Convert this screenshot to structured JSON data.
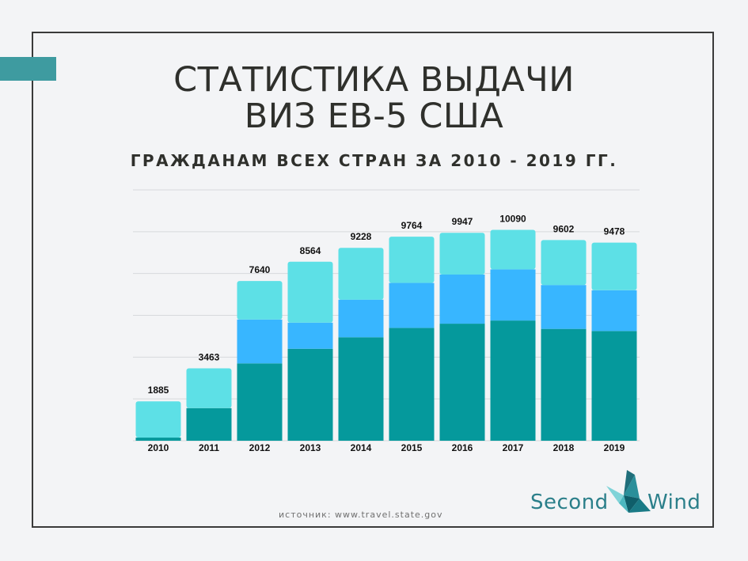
{
  "title_lines": [
    "СТАТИСТИКА ВЫДАЧИ",
    "ВИЗ EB-5 США"
  ],
  "subtitle": "ГРАЖДАНАМ ВСЕХ СТРАН ЗА 2010 - 2019 ГГ.",
  "source": "источник: www.travel.state.gov",
  "logo": {
    "part1": "Second",
    "part2": "Wind"
  },
  "colors": {
    "accent": "#3e9ba0",
    "frame": "#3a3a3a",
    "series_1": "#05999c",
    "series_2": "#38b6ff",
    "series_3": "#5de0e6",
    "logo": "#2b7f8a"
  },
  "chart_data": {
    "type": "bar",
    "stacked": true,
    "categories": [
      "2010",
      "2011",
      "2012",
      "2013",
      "2014",
      "2015",
      "2016",
      "2017",
      "2018",
      "2019"
    ],
    "totals": [
      1885,
      3463,
      7640,
      8564,
      9228,
      9764,
      9947,
      10090,
      9602,
      9478
    ],
    "series": [
      {
        "values": [
          150,
          1560,
          3700,
          4400,
          4950,
          5400,
          5600,
          5750,
          5350,
          5250
        ],
        "color": "#05999c"
      },
      {
        "values": [
          0,
          0,
          2100,
          1250,
          1800,
          2150,
          2350,
          2450,
          2100,
          1950
        ],
        "color": "#38b6ff"
      },
      {
        "values": [
          1735,
          1903,
          1840,
          2914,
          2478,
          2214,
          1997,
          1890,
          2152,
          2278
        ],
        "color": "#5de0e6"
      }
    ],
    "ylim": [
      0,
      12000
    ],
    "grid": true,
    "legend": "none"
  }
}
